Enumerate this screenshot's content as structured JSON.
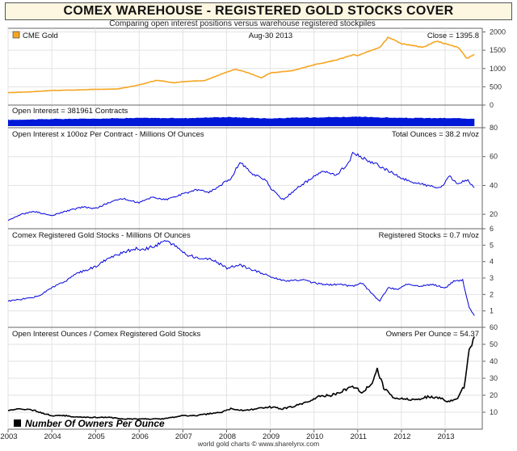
{
  "header": {
    "title": "COMEX WAREHOUSE - REGISTERED GOLD STOCKS COVER",
    "subtitle": "Comparing open interest positions versus warehouse registered stockpiles",
    "credit": "world gold charts © www.sharelynx.com"
  },
  "colors": {
    "gold": "#f5a623",
    "blue": "#0000dd",
    "oi_fill": "#0018d8",
    "black": "#000000",
    "grid": "#e2e2e2"
  },
  "chart_data": [
    {
      "type": "line",
      "legend": "CME Gold",
      "date_label": "Aug-30  2013",
      "close_label": "Close = 1395.8",
      "x": [
        2003.0,
        2003.5,
        2004.0,
        2004.5,
        2005.0,
        2005.5,
        2006.0,
        2006.4,
        2006.8,
        2007.0,
        2007.5,
        2008.0,
        2008.2,
        2008.5,
        2008.8,
        2009.0,
        2009.5,
        2010.0,
        2010.5,
        2010.9,
        2011.0,
        2011.5,
        2011.7,
        2012.0,
        2012.5,
        2012.8,
        2013.0,
        2013.3,
        2013.5,
        2013.67
      ],
      "values": [
        340,
        360,
        400,
        410,
        430,
        440,
        550,
        680,
        610,
        640,
        670,
        900,
        980,
        880,
        740,
        880,
        940,
        1100,
        1230,
        1380,
        1360,
        1570,
        1860,
        1680,
        1580,
        1750,
        1680,
        1580,
        1270,
        1396
      ],
      "ylim": [
        0,
        2100
      ],
      "yticks": [
        0,
        500,
        1000,
        1500,
        2000
      ]
    },
    {
      "type": "area",
      "label": "Open Interest = 381961 Contracts",
      "x": [
        2003.0,
        2004.0,
        2005.0,
        2006.0,
        2007.0,
        2008.0,
        2009.0,
        2010.0,
        2011.0,
        2012.0,
        2013.0,
        2013.67
      ],
      "values": [
        0.55,
        0.62,
        0.66,
        0.72,
        0.7,
        0.8,
        0.68,
        0.78,
        0.82,
        0.72,
        0.7,
        0.66
      ]
    },
    {
      "type": "line",
      "label": "Open Interest x 100oz Per Contract - Millions Of Ounces",
      "value_label": "Total Ounces = 38.2 m/oz",
      "x": [
        2003.0,
        2003.3,
        2003.6,
        2004.0,
        2004.3,
        2004.7,
        2005.0,
        2005.3,
        2005.6,
        2006.0,
        2006.3,
        2006.6,
        2007.0,
        2007.3,
        2007.6,
        2007.9,
        2008.1,
        2008.3,
        2008.6,
        2008.9,
        2009.0,
        2009.3,
        2009.6,
        2009.9,
        2010.2,
        2010.5,
        2010.8,
        2010.9,
        2011.1,
        2011.4,
        2011.7,
        2012.0,
        2012.3,
        2012.6,
        2012.9,
        2013.1,
        2013.3,
        2013.5,
        2013.67
      ],
      "values": [
        16,
        20,
        22,
        19,
        22,
        25,
        24,
        28,
        31,
        28,
        32,
        30,
        34,
        37,
        35,
        41,
        45,
        56,
        48,
        44,
        38,
        30,
        38,
        44,
        50,
        47,
        56,
        63,
        59,
        55,
        50,
        45,
        42,
        40,
        38,
        46,
        41,
        44,
        38
      ],
      "ylim": [
        10,
        80
      ],
      "yticks": [
        20,
        40,
        60,
        80
      ]
    },
    {
      "type": "line",
      "label": "Comex Registered Gold Stocks - Millions Of Ounces",
      "value_label": "Registered Stocks = 0.7 m/oz",
      "x": [
        2003.0,
        2003.3,
        2003.7,
        2004.0,
        2004.3,
        2004.6,
        2005.0,
        2005.3,
        2005.6,
        2005.9,
        2006.1,
        2006.4,
        2006.6,
        2006.9,
        2007.1,
        2007.4,
        2007.7,
        2008.0,
        2008.3,
        2008.6,
        2008.9,
        2009.1,
        2009.4,
        2009.7,
        2010.0,
        2010.3,
        2010.6,
        2010.9,
        2011.1,
        2011.3,
        2011.5,
        2011.7,
        2011.9,
        2012.1,
        2012.4,
        2012.7,
        2013.0,
        2013.2,
        2013.4,
        2013.55,
        2013.67
      ],
      "values": [
        1.6,
        1.7,
        1.9,
        2.4,
        2.8,
        3.3,
        3.7,
        4.2,
        4.5,
        4.8,
        4.7,
        5.0,
        5.3,
        4.8,
        4.4,
        4.2,
        4.1,
        3.6,
        3.8,
        3.5,
        3.2,
        3.0,
        2.8,
        2.9,
        2.7,
        2.6,
        2.6,
        2.5,
        2.7,
        2.1,
        1.6,
        2.4,
        2.3,
        2.6,
        2.5,
        2.6,
        2.4,
        2.8,
        2.9,
        1.2,
        0.7
      ],
      "ylim": [
        0,
        6
      ],
      "yticks": [
        1,
        2,
        3,
        4,
        5,
        6
      ]
    },
    {
      "type": "line",
      "label": "Open Interest Ounces / Comex Registered Gold Stocks",
      "value_label": "Owners Per Ounce = 54.37",
      "legend": "Number Of Owners Per Ounce",
      "x": [
        2003.0,
        2003.3,
        2003.6,
        2004.0,
        2004.3,
        2004.6,
        2005.0,
        2005.3,
        2005.6,
        2005.9,
        2006.2,
        2006.5,
        2006.8,
        2007.0,
        2007.3,
        2007.6,
        2007.9,
        2008.1,
        2008.4,
        2008.7,
        2009.0,
        2009.3,
        2009.6,
        2009.9,
        2010.1,
        2010.4,
        2010.7,
        2010.9,
        2011.1,
        2011.3,
        2011.45,
        2011.6,
        2011.8,
        2012.0,
        2012.3,
        2012.6,
        2012.9,
        2013.1,
        2013.3,
        2013.45,
        2013.55,
        2013.67
      ],
      "values": [
        11,
        12,
        11,
        8,
        8,
        7,
        7,
        7,
        6,
        6,
        6,
        6,
        7,
        8,
        8,
        9,
        10,
        12,
        11,
        12,
        13,
        12,
        14,
        16,
        19,
        20,
        23,
        25,
        22,
        26,
        35,
        24,
        19,
        18,
        17,
        19,
        18,
        16,
        19,
        26,
        46,
        54
      ],
      "ylim": [
        0,
        60
      ],
      "yticks": [
        10,
        20,
        30,
        40,
        50,
        60
      ]
    }
  ],
  "x_axis": {
    "range": [
      2003.0,
      2013.85
    ],
    "ticks": [
      2003,
      2004,
      2005,
      2006,
      2007,
      2008,
      2009,
      2010,
      2011,
      2012,
      2013
    ]
  }
}
